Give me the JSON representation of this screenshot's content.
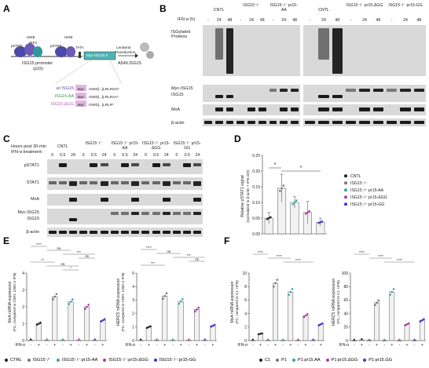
{
  "panels": {
    "A": {
      "letter": "A",
      "promoter_labels": [
        "ISRE",
        "IRF3",
        "pSTRE",
        "ISRE",
        "pSTRE",
        "TATA"
      ],
      "promoter_caption_1": "ISG15 promoter",
      "promoter_caption_2": "(p15)",
      "construct_label": "Myc-ISG15.X",
      "transduction_1": "Lentiviral",
      "transduction_2": "Transduction",
      "cell_label": "A549.ISG15",
      "variants": [
        {
          "name": "wt ISG15",
          "seq": "-GWD[...]LRLRGG*",
          "color": "#5a4a9c"
        },
        {
          "name": "ISG15.AA",
          "seq": "-GWD[...]LRLRAA*",
          "color": "#3f8f4e"
        },
        {
          "name": "ISG15.ΔGG",
          "seq": "-GWD[...]LRLR*",
          "color": "#c25bb8"
        }
      ],
      "myc_tag": "Myc"
    },
    "B": {
      "letter": "B",
      "ifn_label": "IFN-α (h)",
      "groups": [
        "CNTL",
        "ISG15⁻/⁻",
        "ISG15⁻/⁻ pr15-AA",
        "CNTL",
        "ISG15⁻/⁻ pr15-ΔGG",
        "ISG15⁻/⁻ pr15-GG"
      ],
      "timepoints": [
        "-",
        "24",
        "48"
      ],
      "rows": [
        "ISGylated Proteins",
        "Myc-ISG15",
        "ISG15",
        "MxA",
        "β-actin"
      ]
    },
    "C": {
      "letter": "C",
      "header_1": "Hours post 30-min",
      "header_2": "IFN-α treatment:",
      "groups": [
        "CNTL",
        "ISG15⁻/⁻",
        "ISG15⁻/⁻ pr15-AA",
        "ISG15⁻/⁻ pr15-ΔGG",
        "ISG15⁻/⁻ pr15-GG"
      ],
      "timepoints": [
        "0",
        "0.5",
        "24"
      ],
      "rows": [
        "pSTAT1",
        "STAT1",
        "MxA",
        "Myc-ISG15",
        "ISG15",
        "β-actin"
      ]
    },
    "D": {
      "letter": "D",
      "ylabel_1": "Relative pSTAT1 signal",
      "ylabel_2": "(normalized to β-actin + IFN 24h)",
      "sig_1": "*",
      "sig_2": "*",
      "legend": [
        {
          "label": "CNTL",
          "color": "#222222"
        },
        {
          "label": "ISG15⁻/⁻",
          "color": "#777777"
        },
        {
          "label": "ISG15⁻/⁻:pr15-AA",
          "color": "#3aa6a0"
        },
        {
          "label": "ISG15⁻/⁻:pr15-ΔGG",
          "color": "#b03aa8"
        },
        {
          "label": "ISG15⁻/⁻:pr15-GG",
          "color": "#3a3ad0"
        }
      ]
    },
    "E": {
      "letter": "E",
      "ylabel_left_1": "MxA mRNA expression",
      "ylabel_left_2": "(FC, compared to CNTL 1000 U IFN)",
      "ylabel_right_1": "HERC5 mRNA expression",
      "ylabel_right_2": "(FC, compared to CNTL 1000 U IFN)",
      "ifn_label": "IFN-α",
      "legend": [
        {
          "label": "CTRL",
          "color": "#222222"
        },
        {
          "label": "ISG15⁻/⁻",
          "color": "#777777"
        },
        {
          "label": "ISG15⁻/⁻:pr15-AA",
          "color": "#3aa6a0"
        },
        {
          "label": "ISG15⁻/⁻:pr15-ΔGG",
          "color": "#b03aa8"
        },
        {
          "label": "ISG15⁻/⁻:pr15-GG",
          "color": "#3a3ad0"
        }
      ],
      "sig_left": [
        "****",
        "ns",
        "***",
        "ns",
        "**",
        "ns",
        "*"
      ],
      "sig_right": [
        "****",
        "ns",
        "***",
        "ns",
        "***"
      ]
    },
    "F": {
      "letter": "F",
      "ylabel_left_1": "MxA mRNA expression",
      "ylabel_left_2": "(FC, compared to C1 +IFN)",
      "ylabel_right_1": "HERC5 mRNA expression",
      "ylabel_right_2": "(FC, compared to C1 +IFN)",
      "ifn_label": "IFN-α",
      "legend": [
        {
          "label": "C1",
          "color": "#222222"
        },
        {
          "label": "P1",
          "color": "#777777"
        },
        {
          "label": "P1:pr15.AA",
          "color": "#3aa6a0"
        },
        {
          "label": "P1:pr15.ΔGG",
          "color": "#b03aa8"
        },
        {
          "label": "P1:pr15.GG",
          "color": "#3a3ad0"
        }
      ],
      "sig": [
        "****",
        "****",
        "****"
      ]
    }
  },
  "chart_data": [
    {
      "type": "bar",
      "panel": "D",
      "categories": [
        "CNTL",
        "ISG15⁻/⁻",
        "ISG15⁻/⁻:pr15-AA",
        "ISG15⁻/⁻:pr15-ΔGG",
        "ISG15⁻/⁻:pr15-GG"
      ],
      "values": [
        0.05,
        0.145,
        0.1,
        0.068,
        0.037
      ],
      "errors": [
        0.018,
        0.045,
        0.018,
        0.035,
        0.013
      ],
      "ylim": [
        0,
        0.25
      ],
      "yticks": [
        "0.00",
        "0.05",
        "0.10",
        "0.15",
        "0.20",
        "0.25"
      ],
      "colors": [
        "#222222",
        "#777777",
        "#3aa6a0",
        "#b03aa8",
        "#3a3ad0"
      ]
    },
    {
      "type": "bar",
      "panel": "E-left",
      "categories": [
        "CTRL -",
        "CTRL +",
        "ISG15 -",
        "ISG15 +",
        "AA -",
        "AA +",
        "ΔGG -",
        "ΔGG +",
        "GG -",
        "GG +"
      ],
      "ifn": [
        "-",
        "+",
        "-",
        "+",
        "-",
        "+",
        "-",
        "+",
        "-",
        "+"
      ],
      "values": [
        0.02,
        1.0,
        0.02,
        2.6,
        0.02,
        2.3,
        0.02,
        2.0,
        0.02,
        1.2
      ],
      "ylim": [
        0,
        4
      ],
      "yticks": [
        "0",
        "1",
        "2",
        "3",
        "4"
      ],
      "colors": [
        "#222222",
        "#222222",
        "#777777",
        "#777777",
        "#3aa6a0",
        "#3aa6a0",
        "#b03aa8",
        "#b03aa8",
        "#3a3ad0",
        "#3a3ad0"
      ]
    },
    {
      "type": "bar",
      "panel": "E-right",
      "categories": [
        "CTRL -",
        "CTRL +",
        "ISG15 -",
        "ISG15 +",
        "AA -",
        "AA +",
        "ΔGG -",
        "ΔGG +",
        "GG -",
        "GG +"
      ],
      "ifn": [
        "-",
        "+",
        "-",
        "+",
        "-",
        "+",
        "-",
        "+",
        "-",
        "+"
      ],
      "values": [
        0.02,
        1.0,
        0.02,
        3.3,
        0.02,
        2.9,
        0.02,
        2.3,
        0.02,
        1.1
      ],
      "ylim": [
        0,
        5
      ],
      "yticks": [
        "0",
        "1",
        "2",
        "3",
        "4",
        "5"
      ],
      "colors": [
        "#222222",
        "#222222",
        "#777777",
        "#777777",
        "#3aa6a0",
        "#3aa6a0",
        "#b03aa8",
        "#b03aa8",
        "#3a3ad0",
        "#3a3ad0"
      ]
    },
    {
      "type": "bar",
      "panel": "F-left",
      "categories": [
        "C1 -",
        "C1 +",
        "P1 -",
        "P1 +",
        "AA -",
        "AA +",
        "ΔGG -",
        "ΔGG +",
        "GG -",
        "GG +"
      ],
      "ifn": [
        "-",
        "+",
        "-",
        "+",
        "-",
        "+",
        "-",
        "+",
        "-",
        "+"
      ],
      "values": [
        0.02,
        1.0,
        0.02,
        8.5,
        0.02,
        7.2,
        0.02,
        3.7,
        0.02,
        2.4
      ],
      "ylim": [
        0,
        10
      ],
      "yticks": [
        "0",
        "2",
        "4",
        "6",
        "8",
        "10"
      ],
      "colors": [
        "#222222",
        "#222222",
        "#777777",
        "#777777",
        "#3aa6a0",
        "#3aa6a0",
        "#b03aa8",
        "#b03aa8",
        "#3a3ad0",
        "#3a3ad0"
      ]
    },
    {
      "type": "bar",
      "panel": "F-right",
      "categories": [
        "C1 -",
        "C1 +",
        "P1 -",
        "P1 +",
        "AA -",
        "AA +",
        "ΔGG -",
        "ΔGG +",
        "GG -",
        "GG +"
      ],
      "ifn": [
        "-",
        "+",
        "-",
        "+",
        "-",
        "+",
        "-",
        "+",
        "-",
        "+"
      ],
      "values": [
        0.02,
        1.0,
        0.02,
        56,
        0.02,
        72,
        0.02,
        24,
        0.02,
        30
      ],
      "ylim": [
        0,
        100
      ],
      "yticks": [
        "0",
        "20",
        "40",
        "60",
        "80",
        "100"
      ],
      "colors": [
        "#222222",
        "#222222",
        "#777777",
        "#777777",
        "#3aa6a0",
        "#3aa6a0",
        "#b03aa8",
        "#b03aa8",
        "#3a3ad0",
        "#3a3ad0"
      ]
    }
  ]
}
